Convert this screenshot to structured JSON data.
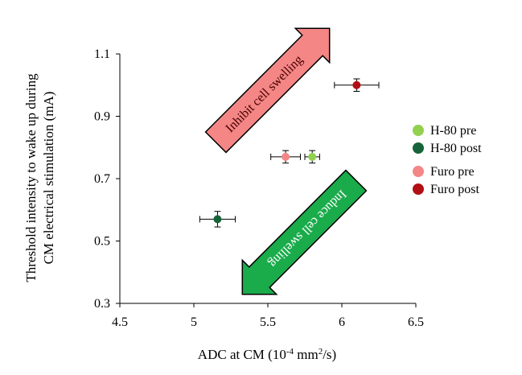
{
  "chart_data": {
    "type": "scatter",
    "xlabel": "ADC at CM (10",
    "xlabel_sup": "-4",
    "xlabel_mid": " mm",
    "xlabel_sup2": "2",
    "xlabel_end": "/s)",
    "ylabel_line1": "Threshold intensity to wake up during",
    "ylabel_line2": "CM electrical stimulation (mA)",
    "xlim": [
      4.5,
      6.5
    ],
    "ylim": [
      0.3,
      1.1
    ],
    "x_ticks": [
      4.5,
      5,
      5.5,
      6,
      6.5
    ],
    "x_tick_labels": [
      "4.5",
      "5",
      "5.5",
      "6",
      "6.5"
    ],
    "y_ticks": [
      0.3,
      0.5,
      0.7,
      0.9,
      1.1
    ],
    "y_tick_labels": [
      "0.3",
      "0.5",
      "0.7",
      "0.9",
      "1.1"
    ],
    "grid": false,
    "legend_position": "right",
    "series": [
      {
        "name": "H-80 pre",
        "color": "#92d050",
        "x": 5.8,
        "y": 0.77,
        "xerr": 0.05,
        "yerr": 0.02
      },
      {
        "name": "H-80 post",
        "color": "#17643a",
        "x": 5.16,
        "y": 0.57,
        "xerr": 0.12,
        "yerr": 0.025
      },
      {
        "name": "Furo pre",
        "color": "#f48686",
        "x": 5.62,
        "y": 0.77,
        "xerr": 0.1,
        "yerr": 0.02
      },
      {
        "name": "Furo post",
        "color": "#b20f14",
        "x": 6.1,
        "y": 1.0,
        "xerr": 0.15,
        "yerr": 0.02
      }
    ],
    "annotations": [
      {
        "text": "Inhibit cell swelling",
        "color": "#f48686",
        "direction": "up-right"
      },
      {
        "text": "Induce cell swelling",
        "color": "#1aab4b",
        "direction": "down-left"
      }
    ]
  }
}
